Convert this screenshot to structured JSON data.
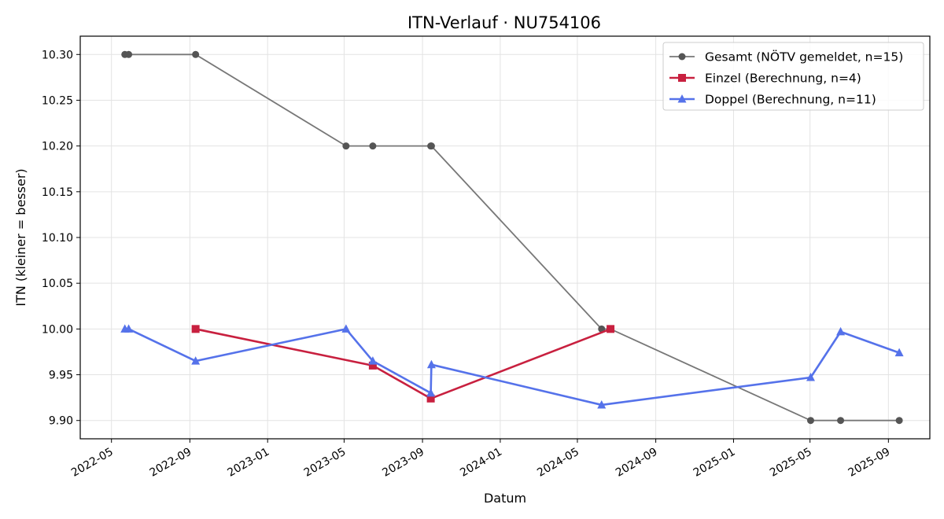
{
  "chart_data": {
    "type": "line",
    "title": "ITN-Verlauf · NU754106",
    "xlabel": "Datum",
    "ylabel": "ITN  (kleiner = besser)",
    "x_type": "date",
    "xlim": [
      "2022-03-13",
      "2025-11-05"
    ],
    "ylim": [
      9.88,
      10.32
    ],
    "grid": true,
    "legend_position": "top-right",
    "x_ticks": [
      "2022-05",
      "2022-09",
      "2023-01",
      "2023-05",
      "2023-09",
      "2024-01",
      "2024-05",
      "2024-09",
      "2025-01",
      "2025-05",
      "2025-09"
    ],
    "y_ticks": [
      "10.30",
      "10.25",
      "10.20",
      "10.15",
      "10.10",
      "10.05",
      "10.00",
      "9.95",
      "9.90"
    ],
    "series": [
      {
        "name": "Gesamt (NÖTV gemeldet, n=15)",
        "color": "#777777",
        "marker_color": "#555555",
        "marker": "circle",
        "points": [
          {
            "x": "2022-05-22",
            "y": 10.3
          },
          {
            "x": "2022-05-28",
            "y": 10.3
          },
          {
            "x": "2022-09-10",
            "y": 10.3
          },
          {
            "x": "2023-05-04",
            "y": 10.2
          },
          {
            "x": "2023-06-15",
            "y": 10.2
          },
          {
            "x": "2023-09-14",
            "y": 10.2
          },
          {
            "x": "2023-09-15",
            "y": 10.2
          },
          {
            "x": "2024-06-08",
            "y": 10.0
          },
          {
            "x": "2024-06-22",
            "y": 10.0
          },
          {
            "x": "2025-05-02",
            "y": 9.9
          },
          {
            "x": "2025-06-18",
            "y": 9.9
          },
          {
            "x": "2025-09-18",
            "y": 9.9
          }
        ]
      },
      {
        "name": "Einzel (Berechnung, n=4)",
        "color": "#c8203f",
        "marker_color": "#c8203f",
        "marker": "square",
        "points": [
          {
            "x": "2022-09-10",
            "y": 10.0
          },
          {
            "x": "2023-06-15",
            "y": 9.96
          },
          {
            "x": "2023-09-14",
            "y": 9.924
          },
          {
            "x": "2024-06-22",
            "y": 10.0
          }
        ]
      },
      {
        "name": "Doppel (Berechnung, n=11)",
        "color": "#5572ea",
        "marker_color": "#5572ea",
        "marker": "triangle",
        "points": [
          {
            "x": "2022-05-22",
            "y": 10.0
          },
          {
            "x": "2022-05-28",
            "y": 10.0
          },
          {
            "x": "2022-09-10",
            "y": 9.965
          },
          {
            "x": "2023-05-04",
            "y": 10.0
          },
          {
            "x": "2023-06-15",
            "y": 9.965
          },
          {
            "x": "2023-09-14",
            "y": 9.93
          },
          {
            "x": "2023-09-15",
            "y": 9.961
          },
          {
            "x": "2024-06-08",
            "y": 9.917
          },
          {
            "x": "2025-05-02",
            "y": 9.947
          },
          {
            "x": "2025-06-18",
            "y": 9.997
          },
          {
            "x": "2025-09-18",
            "y": 9.974
          }
        ]
      }
    ]
  }
}
